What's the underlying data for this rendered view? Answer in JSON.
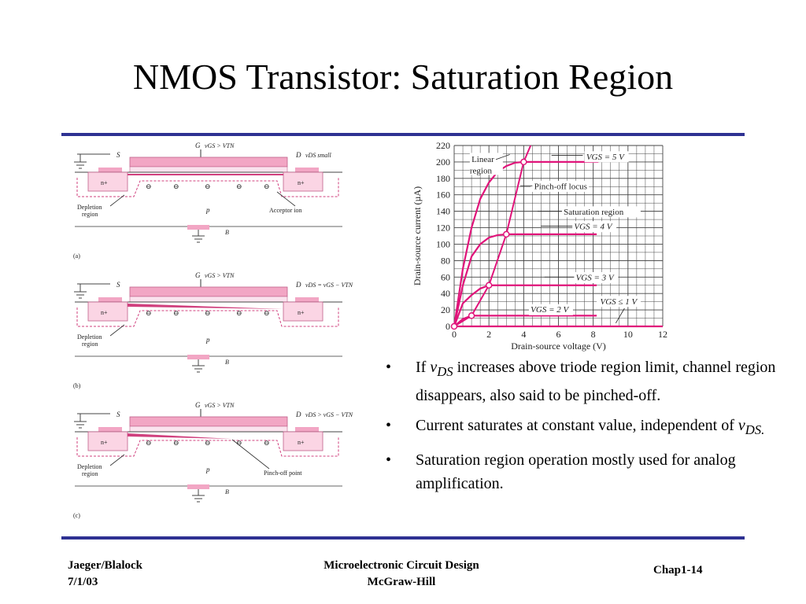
{
  "title": "NMOS Transistor: Saturation Region",
  "colors": {
    "rule": "#2e3192",
    "device_pink": "#f2a6c4",
    "curve": "#e0147a",
    "grid": "#333333"
  },
  "diagram": {
    "panels": [
      {
        "tag": "(a)",
        "gate": "G",
        "gate_cond": "vGS > VTN",
        "source": "S",
        "drain": "D",
        "drain_cond": "vDS small",
        "depletion": "Depletion region",
        "depletion_line2": "region",
        "depletion_line1": "Depletion",
        "substrate": "p",
        "body": "B",
        "nplus": "n+",
        "extra_label": "Acceptor ion"
      },
      {
        "tag": "(b)",
        "gate": "G",
        "gate_cond": "vGS > VTN",
        "source": "S",
        "drain": "D",
        "drain_cond": "vDS = vGS − VTN",
        "depletion_line1": "Depletion",
        "depletion_line2": "region",
        "substrate": "p",
        "body": "B",
        "nplus": "n+"
      },
      {
        "tag": "(c)",
        "gate": "G",
        "gate_cond": "vGS > VTN",
        "source": "S",
        "drain": "D",
        "drain_cond": "vDS > vGS − VTN",
        "depletion_line1": "Depletion",
        "depletion_line2": "region",
        "substrate": "p",
        "body": "B",
        "nplus": "n+",
        "extra_label": "Pinch-off point"
      }
    ]
  },
  "chart_data": {
    "type": "line",
    "xlabel": "Drain-source voltage (V)",
    "ylabel": "Drain-source current (µA)",
    "xlim": [
      0,
      12
    ],
    "ylim": [
      0,
      220
    ],
    "xticks": [
      0,
      2,
      4,
      6,
      8,
      10,
      12
    ],
    "yticks": [
      0,
      20,
      40,
      60,
      80,
      100,
      120,
      140,
      160,
      180,
      200,
      220
    ],
    "grid": true,
    "series": [
      {
        "name": "VGS = 5 V",
        "x": [
          0,
          0.5,
          1,
          1.5,
          2,
          2.5,
          3,
          3.5,
          4,
          8.3
        ],
        "y": [
          0,
          70,
          120,
          155,
          175,
          188,
          195,
          199,
          200,
          200
        ]
      },
      {
        "name": "VGS = 4 V",
        "x": [
          0,
          0.5,
          1,
          1.5,
          2,
          2.5,
          3,
          8.2
        ],
        "y": [
          0,
          50,
          85,
          100,
          108,
          111,
          112,
          112
        ]
      },
      {
        "name": "VGS = 3 V",
        "x": [
          0,
          0.5,
          1,
          1.5,
          2,
          8.2
        ],
        "y": [
          0,
          28,
          38,
          46,
          50,
          50
        ]
      },
      {
        "name": "VGS = 2 V",
        "x": [
          0,
          0.5,
          1,
          8.2
        ],
        "y": [
          0,
          9,
          13,
          13
        ]
      },
      {
        "name": "VGS ≤ 1 V",
        "x": [
          0,
          12
        ],
        "y": [
          0,
          0
        ]
      },
      {
        "name": "Pinch-off locus",
        "x": [
          0,
          1,
          2,
          3,
          4,
          4.4
        ],
        "y": [
          0,
          13,
          50,
          112,
          200,
          220
        ]
      }
    ],
    "pinch_points": [
      {
        "x": 1,
        "y": 13
      },
      {
        "x": 2,
        "y": 50
      },
      {
        "x": 3,
        "y": 112
      },
      {
        "x": 4,
        "y": 200
      }
    ],
    "annotations": {
      "linear_region": [
        "Linear",
        "region"
      ],
      "pinchoff_locus": "Pinch-off locus",
      "saturation_region": "Saturation region",
      "vgs5": "VGS = 5 V",
      "vgs4": "VGS = 4 V",
      "vgs3": "VGS = 3 V",
      "vgs2": "VGS = 2 V",
      "vgs1": "VGS ≤ 1 V"
    }
  },
  "bullets": [
    {
      "pre": "If ",
      "var": "v",
      "sub": "DS",
      "post": " increases above triode region limit, channel region disappears, also said to be pinched-off."
    },
    {
      "pre": "Current saturates at constant value, independent of ",
      "var": "v",
      "sub": "DS.",
      "post": ""
    },
    {
      "pre": "Saturation region operation mostly used for analog amplification.",
      "var": "",
      "sub": "",
      "post": ""
    }
  ],
  "bullet_symbol": "•",
  "footer": {
    "left_line1": "Jaeger/Blalock",
    "left_line2": "7/1/03",
    "center_line1": "Microelectronic Circuit Design",
    "center_line2": "McGraw-Hill",
    "right": "Chap1-14"
  }
}
